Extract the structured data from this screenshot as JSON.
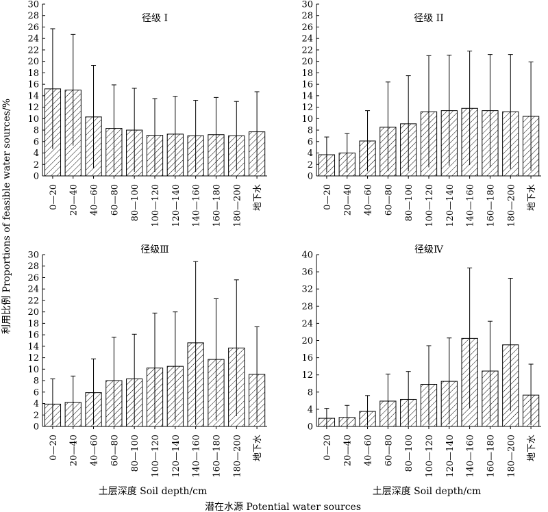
{
  "figure": {
    "ylabel": "利用比例 Proportions of feasible water sources/%",
    "xlabel": "土层深度 Soil depth/cm",
    "bottom_caption": "潜在水源 Potential water sources"
  },
  "chart_data": [
    {
      "type": "bar",
      "title": "径级 I",
      "categories": [
        "0—20",
        "20—40",
        "40—60",
        "60—80",
        "80—100",
        "100—120",
        "120—140",
        "140—160",
        "160—180",
        "180—200",
        "地下水"
      ],
      "values": [
        15.2,
        15.0,
        10.3,
        8.3,
        8.0,
        7.1,
        7.3,
        7.0,
        7.2,
        7.0,
        7.7
      ],
      "error_upper": [
        25.7,
        24.7,
        19.3,
        15.9,
        15.3,
        13.5,
        13.9,
        13.2,
        13.7,
        13.0,
        14.7
      ],
      "error_lower": [
        4.7,
        5.3,
        1.3,
        0.7,
        0.7,
        0.7,
        0.7,
        0.7,
        0.7,
        0.9,
        0.7
      ],
      "ylim": [
        0,
        30
      ],
      "yticks": [
        0,
        2,
        4,
        6,
        8,
        10,
        12,
        14,
        16,
        18,
        20,
        22,
        24,
        26,
        28,
        30
      ]
    },
    {
      "type": "bar",
      "title": "径级 II",
      "categories": [
        "0—20",
        "20—40",
        "40—60",
        "60—80",
        "80—100",
        "100—120",
        "120—140",
        "140—160",
        "160—180",
        "180—200",
        "地下水"
      ],
      "values": [
        3.7,
        4.0,
        6.1,
        8.5,
        9.1,
        11.2,
        11.4,
        11.8,
        11.4,
        11.2,
        10.4
      ],
      "error_upper": [
        6.8,
        7.4,
        11.4,
        16.4,
        17.5,
        21.0,
        21.1,
        21.8,
        21.2,
        21.2,
        19.9
      ],
      "error_lower": [
        0.6,
        0.6,
        0.8,
        0.8,
        0.8,
        1.5,
        1.8,
        1.9,
        1.5,
        1.2,
        0.9
      ],
      "ylim": [
        0,
        30
      ],
      "yticks": [
        0,
        2,
        4,
        6,
        8,
        10,
        12,
        14,
        16,
        18,
        20,
        22,
        24,
        26,
        28,
        30
      ]
    },
    {
      "type": "bar",
      "title": "径级Ⅲ",
      "categories": [
        "0—20",
        "20—40",
        "40—60",
        "60—80",
        "80—100",
        "100—120",
        "120—140",
        "140—160",
        "160—180",
        "180—200",
        "地下水"
      ],
      "values": [
        3.9,
        4.2,
        5.9,
        8.0,
        8.3,
        10.2,
        10.5,
        14.6,
        11.7,
        13.7,
        9.1
      ],
      "error_upper": [
        8.3,
        8.8,
        11.8,
        15.6,
        16.1,
        19.8,
        20.0,
        28.8,
        22.3,
        25.6,
        17.4
      ],
      "error_lower": [
        0.2,
        0.2,
        0.3,
        0.3,
        0.4,
        0.6,
        0.9,
        0.3,
        1.0,
        1.8,
        0.8
      ],
      "ylim": [
        0,
        30
      ],
      "yticks": [
        0,
        2,
        4,
        6,
        8,
        10,
        12,
        14,
        16,
        18,
        20,
        22,
        24,
        26,
        28,
        30
      ]
    },
    {
      "type": "bar",
      "title": "径级Ⅳ",
      "categories": [
        "0—20",
        "20—40",
        "40—60",
        "60—80",
        "80—100",
        "100—120",
        "120—140",
        "140—160",
        "160—180",
        "180—200",
        "地下水"
      ],
      "values": [
        1.9,
        2.1,
        3.5,
        5.9,
        6.3,
        9.8,
        10.5,
        20.5,
        12.9,
        19.0,
        7.3
      ],
      "error_upper": [
        4.2,
        4.9,
        7.2,
        12.2,
        12.8,
        18.8,
        20.6,
        36.9,
        24.5,
        34.5,
        14.5
      ],
      "error_lower": [
        0.1,
        0.1,
        0.2,
        0.2,
        0.2,
        0.4,
        0.5,
        4.2,
        1.2,
        3.6,
        0.3
      ],
      "ylim": [
        0,
        40
      ],
      "yticks": [
        0,
        4,
        8,
        12,
        16,
        20,
        24,
        28,
        32,
        36,
        40
      ]
    }
  ]
}
